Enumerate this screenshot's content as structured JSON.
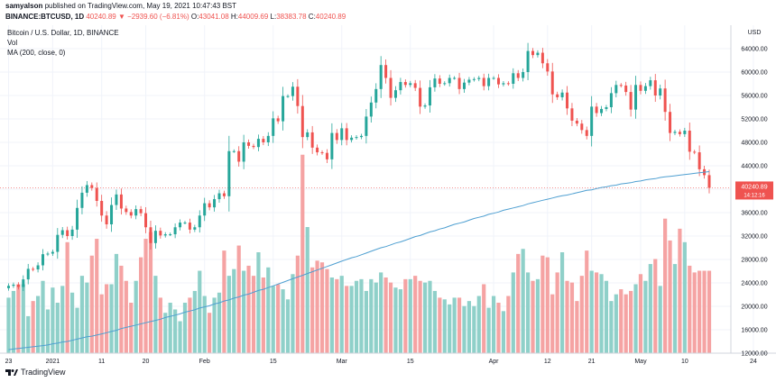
{
  "header": {
    "user": "samyalson",
    "published": "published on TradingView.com, May 19, 2021 10:47:43 BST",
    "symbol": "BINANCE:BTCUSD, 1D",
    "price": "40240.89",
    "change": "▼ −2939.60 (−6.81%)",
    "ohlc": {
      "o_label": "O:",
      "o": "43041.08",
      "h_label": "H:",
      "h": "44009.69",
      "l_label": "L:",
      "l": "38383.78",
      "c_label": "C:",
      "c": "40240.89"
    }
  },
  "legend": {
    "title": "Bitcoin / U.S. Dollar, 1D, BINANCE",
    "vol": "Vol",
    "ma": "MA (200, close, 0)"
  },
  "colors": {
    "up": "#26a69a",
    "down": "#ef5350",
    "vol_up": "#8fd0c9",
    "vol_down": "#f5a3a3",
    "ma": "#4e9fd1"
  },
  "footer": {
    "brand": "TradingView"
  },
  "chart_data": {
    "type": "candlestick",
    "currency": "USD",
    "price_label": "40240.89",
    "countdown": "14:12:16",
    "ylim": [
      12000,
      68000
    ],
    "yticks": [
      "64000.00",
      "60000.00",
      "56000.00",
      "52000.00",
      "48000.00",
      "44000.00",
      "40000.00",
      "36000.00",
      "32000.00",
      "28000.00",
      "24000.00",
      "20000.00",
      "16000.00",
      "12000.00"
    ],
    "xticks": [
      {
        "label": "23",
        "i": 0
      },
      {
        "label": "2021",
        "i": 9
      },
      {
        "label": "11",
        "i": 19
      },
      {
        "label": "20",
        "i": 28
      },
      {
        "label": "Feb",
        "i": 40
      },
      {
        "label": "15",
        "i": 54
      },
      {
        "label": "Mar",
        "i": 68
      },
      {
        "label": "15",
        "i": 82
      },
      {
        "label": "Apr",
        "i": 99
      },
      {
        "label": "12",
        "i": 110
      },
      {
        "label": "21",
        "i": 119
      },
      {
        "label": "May",
        "i": 129
      },
      {
        "label": "10",
        "i": 138
      },
      {
        "label": "24",
        "i": 152
      }
    ],
    "closes": [
      23500,
      23700,
      23300,
      24600,
      26400,
      26300,
      27000,
      28900,
      29000,
      29300,
      32200,
      33000,
      32000,
      33100,
      36800,
      39400,
      40700,
      40200,
      38000,
      35500,
      34000,
      37300,
      39100,
      36700,
      36100,
      35500,
      36600,
      35900,
      33500,
      30800,
      32900,
      32100,
      32300,
      32300,
      33500,
      34300,
      34300,
      33100,
      33500,
      35500,
      37600,
      36900,
      38300,
      39300,
      38800,
      46500,
      46500,
      44700,
      48000,
      47400,
      47200,
      48600,
      48000,
      49100,
      52100,
      51600,
      55900,
      55900,
      57500,
      54200,
      48900,
      49700,
      47100,
      46300,
      46200,
      45100,
      49600,
      48400,
      50400,
      48400,
      48800,
      48900,
      49100,
      52400,
      54800,
      57100,
      61200,
      59000,
      55600,
      56900,
      58300,
      57800,
      58100,
      57300,
      54100,
      54300,
      57400,
      58900,
      58000,
      58100,
      59000,
      59000,
      57100,
      58200,
      58700,
      58800,
      59000,
      57600,
      59000,
      59000,
      57900,
      58100,
      58000,
      59800,
      59000,
      60000,
      63600,
      62900,
      63300,
      61500,
      60100,
      56200,
      55700,
      56500,
      53800,
      51700,
      51200,
      50100,
      49100,
      54100,
      53000,
      53700,
      54000,
      56400,
      57800,
      57700,
      56600,
      53600,
      57800,
      56800,
      57600,
      58600,
      56000,
      57200,
      53200,
      49600,
      49800,
      49400,
      50000,
      46400,
      46300,
      43400,
      42400,
      40240
    ],
    "volumes": [
      13800,
      14200,
      14600,
      14600,
      12700,
      13600,
      13900,
      14800,
      13100,
      14400,
      13500,
      14500,
      17100,
      14100,
      13200,
      15100,
      14700,
      16300,
      17300,
      14000,
      14600,
      14600,
      16400,
      15700,
      14800,
      13500,
      14800,
      16200,
      17300,
      17700,
      15100,
      13800,
      12900,
      13500,
      13100,
      12400,
      13500,
      13800,
      14200,
      15400,
      13900,
      12900,
      13800,
      14100,
      16600,
      15100,
      15500,
      16900,
      15400,
      15700,
      15100,
      16500,
      15000,
      15600,
      14500,
      14600,
      14300,
      13700,
      15200,
      16300,
      22300,
      18000,
      15600,
      16000,
      15900,
      15500,
      15000,
      14900,
      15100,
      14500,
      14500,
      14800,
      14900,
      14200,
      14900,
      14700,
      15300,
      15000,
      14700,
      14400,
      14300,
      14900,
      14900,
      15100,
      14800,
      14700,
      14800,
      14200,
      13800,
      13700,
      13400,
      13800,
      13800,
      13300,
      13600,
      13300,
      13900,
      14600,
      13200,
      13900,
      13500,
      13000,
      13900,
      15300,
      16400,
      16700,
      15300,
      14800,
      14900,
      16300,
      16200,
      14000,
      15300,
      16500,
      14800,
      14700,
      13600,
      15100,
      16600,
      15400,
      15300,
      15200,
      14800,
      13600,
      14000,
      14300,
      14000,
      14200,
      14600,
      15200,
      14800,
      15800,
      16100,
      14500,
      18500,
      17200,
      15800,
      17900,
      17100,
      15700,
      15300,
      15400,
      15400,
      15400
    ],
    "volume_ylim": [
      10500,
      30000
    ],
    "ma": [
      12600,
      12700,
      12800,
      12900,
      13000,
      13100,
      13200,
      13300,
      13400,
      13600,
      13700,
      13900,
      14000,
      14200,
      14400,
      14600,
      14800,
      14900,
      15100,
      15300,
      15500,
      15700,
      15900,
      16200,
      16400,
      16600,
      16800,
      17000,
      17200,
      17400,
      17600,
      17800,
      18100,
      18300,
      18500,
      18700,
      19000,
      19200,
      19400,
      19700,
      19900,
      20100,
      20400,
      20600,
      20900,
      21100,
      21400,
      21600,
      21900,
      22100,
      22400,
      22700,
      22900,
      23200,
      23500,
      23800,
      24100,
      24400,
      24700,
      25000,
      25300,
      25600,
      25900,
      26200,
      26500,
      26800,
      27100,
      27400,
      27700,
      28000,
      28300,
      28500,
      28800,
      29100,
      29400,
      29700,
      30000,
      30200,
      30500,
      30800,
      31000,
      31300,
      31600,
      31900,
      32100,
      32400,
      32700,
      32900,
      33200,
      33400,
      33700,
      34000,
      34200,
      34400,
      34700,
      35000,
      35200,
      35400,
      35700,
      35900,
      36100,
      36400,
      36600,
      36800,
      37000,
      37200,
      37500,
      37700,
      37900,
      38100,
      38300,
      38500,
      38700,
      38900,
      39000,
      39200,
      39400,
      39600,
      39800,
      39900,
      40100,
      40300,
      40400,
      40600,
      40700,
      40900,
      41000,
      41100,
      41300,
      41400,
      41600,
      41700,
      41800,
      42000,
      42100,
      42200,
      42300,
      42400,
      42500,
      42600,
      42700,
      42800,
      42900,
      43000
    ]
  }
}
